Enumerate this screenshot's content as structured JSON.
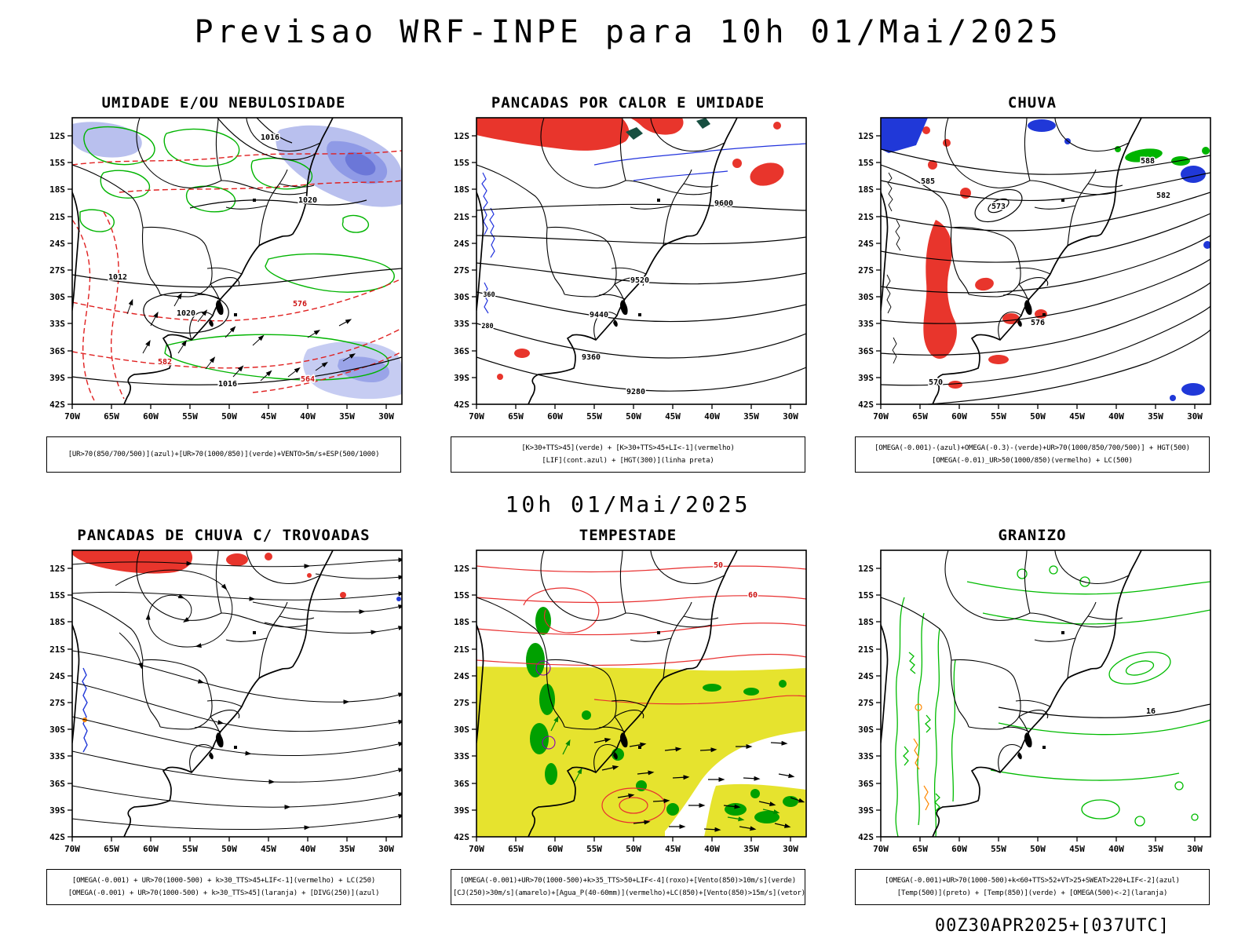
{
  "header": {
    "title": "Previsao WRF-INPE  para 10h 01/Mai/2025"
  },
  "subtitle": "10h 01/Mai/2025",
  "footer": "00Z30APR2025+[037UTC]",
  "axes": {
    "lat_ticks": [
      "12S",
      "15S",
      "18S",
      "21S",
      "24S",
      "27S",
      "30S",
      "33S",
      "36S",
      "39S",
      "42S"
    ],
    "lon_ticks": [
      "70W",
      "65W",
      "60W",
      "55W",
      "50W",
      "45W",
      "40W",
      "35W",
      "30W"
    ]
  },
  "colors": {
    "red": "#e8352c",
    "blue": "#2038d8",
    "green": "#00b400",
    "yellow": "#e6e32e",
    "periwinkle": "#aab3ec",
    "orange": "#ff8800",
    "teal": "#1a5045"
  },
  "panels": [
    {
      "id": "umidade",
      "title": "UMIDADE E/OU NEBULOSIDADE",
      "legend": [
        "[UR>70(850/700/500)](azul)+[UR>70(1000/850)](verde)+VENTO>5m/s+ESP(500/1000)"
      ],
      "contour_labels": [
        "1012",
        "1016",
        "1016",
        "1020",
        "1020",
        "576",
        "582",
        "564"
      ]
    },
    {
      "id": "pancadas-calor-umidade",
      "title": "PANCADAS POR CALOR E UMIDADE",
      "legend": [
        "[K>30+TTS>45](verde) + [K>30+TTS>45+LI<-1](vermelho)",
        "[LIF](cont.azul) + [HGT(300)](linha preta)"
      ],
      "contour_labels": [
        "9600",
        "9520",
        "9440",
        "9360",
        "9280",
        "360",
        "280"
      ]
    },
    {
      "id": "chuva",
      "title": "CHUVA",
      "legend": [
        "[OMEGA(-0.001)-(azul)+OMEGA(-0.3)-(verde)+UR>70(1000/850/700/500)] + HGT(500)",
        "[OMEGA(-0.01)_UR>50(1000/850)(vermelho) + LC(500)"
      ],
      "contour_labels": [
        "588",
        "585",
        "582",
        "576",
        "573",
        "570"
      ]
    },
    {
      "id": "pancadas-trovoadas",
      "title": "PANCADAS DE CHUVA C/ TROVOADAS",
      "legend": [
        "[OMEGA(-0.001) + UR>70(1000-500) + k>30_TTS>45+LIF<-1](vermelho) + LC(250)",
        "[OMEGA(-0.001) + UR>70(1000-500) + k>30_TTS>45](laranja) + [DIVG(250)](azul)"
      ],
      "contour_labels": []
    },
    {
      "id": "tempestade",
      "title": "TEMPESTADE",
      "legend": [
        "[OMEGA(-0.001)+UR>70(1000-500)+k>35_TTS>50+LIF<-4](roxo)+[Vento(850)>10m/s](verde)",
        "[CJ(250)>30m/s](amarelo)+[Agua_P(40-60mm)](vermelho)+LC(850)+[Vento(850)>15m/s](vetor)"
      ],
      "contour_labels": [
        "50",
        "60"
      ]
    },
    {
      "id": "granizo",
      "title": "GRANIZO",
      "legend": [
        "[OMEGA(-0.001)+UR>70(1000-500)+k<60+TTS>52+VT>25+SWEAT>220+LIF<-2](azul)",
        "[Temp(500)](preto) + [Temp(850)](verde) + [OMEGA(500)<-2](laranja)"
      ],
      "contour_labels": [
        "16"
      ]
    }
  ]
}
